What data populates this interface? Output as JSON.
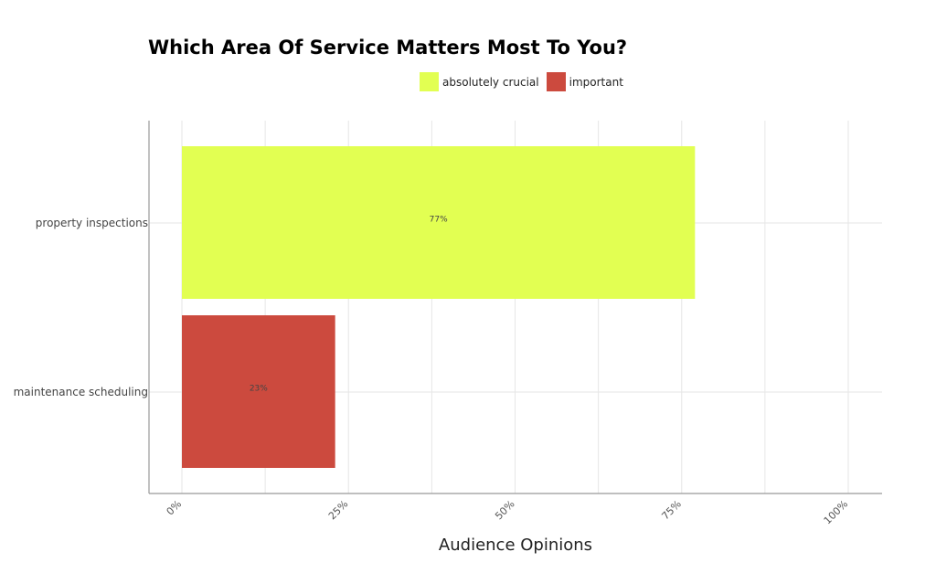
{
  "chart_data": {
    "type": "bar",
    "orientation": "horizontal",
    "title": "Which Area Of Service Matters Most To You?",
    "xlabel": "Audience Opinions",
    "ylabel": "",
    "xlim": [
      0,
      100
    ],
    "x_ticks": [
      "0%",
      "25%",
      "50%",
      "75%",
      "100%"
    ],
    "grid": true,
    "legend_position": "top",
    "categories": [
      "property inspections",
      "maintenance scheduling"
    ],
    "series": [
      {
        "name": "absolutely crucial",
        "color": "#e2ff52",
        "category": "property inspections",
        "value": 77,
        "label": "77%"
      },
      {
        "name": "important",
        "color": "#cc4a3e",
        "category": "maintenance scheduling",
        "value": 23,
        "label": "23%"
      }
    ]
  }
}
